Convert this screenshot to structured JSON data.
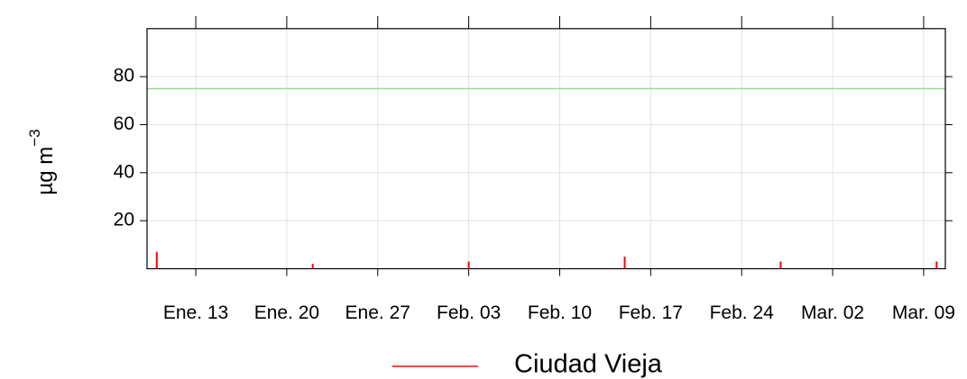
{
  "chart_data": {
    "type": "bar",
    "ylabel": "µg m",
    "ylabel_superscript": "−3",
    "x": [
      10,
      22,
      34,
      46,
      58,
      70
    ],
    "series": [
      {
        "name": "Ciudad Vieja",
        "color": "#ff0000",
        "values": [
          7,
          2,
          3,
          5,
          3,
          3
        ]
      }
    ],
    "xlim": [
      9.25,
      70.67
    ],
    "xticks": [
      {
        "value": 13,
        "label": "Ene. 13"
      },
      {
        "value": 20,
        "label": "Ene. 20"
      },
      {
        "value": 27,
        "label": "Ene. 27"
      },
      {
        "value": 34,
        "label": "Feb. 03"
      },
      {
        "value": 41,
        "label": "Feb. 10"
      },
      {
        "value": 48,
        "label": "Feb. 17"
      },
      {
        "value": 55,
        "label": "Feb. 24"
      },
      {
        "value": 62,
        "label": "Mar. 02"
      },
      {
        "value": 69,
        "label": "Mar. 09"
      }
    ],
    "ylim": [
      0,
      100
    ],
    "yticks": [
      20,
      40,
      60,
      80
    ],
    "reference_line": {
      "value": 75,
      "color": "#90e090"
    },
    "grid": true,
    "legend": "bottom"
  }
}
